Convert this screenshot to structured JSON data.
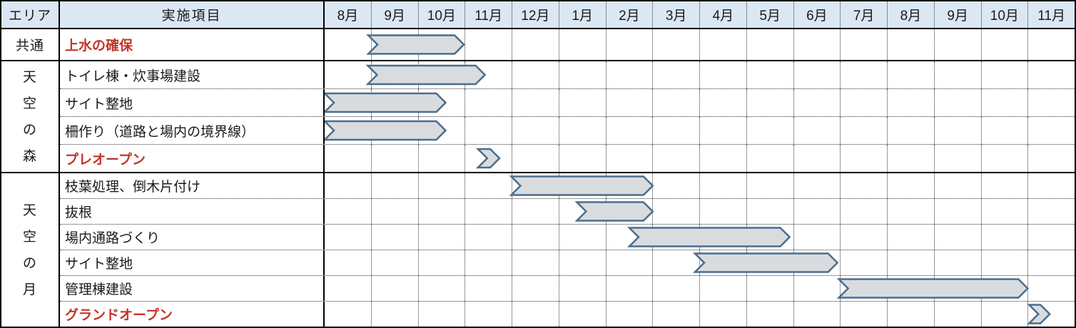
{
  "header": {
    "area_label": "エリア",
    "item_label": "実施項目"
  },
  "chart_data": {
    "type": "gantt",
    "unit": "month-column index; 0 = left edge of first 8月 column, 16 columns total",
    "months": [
      "8月",
      "9月",
      "10月",
      "11月",
      "12月",
      "1月",
      "2月",
      "3月",
      "4月",
      "5月",
      "6月",
      "7月",
      "8月",
      "9月",
      "10月",
      "11月"
    ],
    "sections": [
      {
        "area": "共通",
        "vertical": false,
        "tasks": [
          {
            "label": "上水の確保",
            "emphasis": true,
            "start": 0.93,
            "end": 2.97
          }
        ]
      },
      {
        "area": "天空の森",
        "vertical": true,
        "tasks": [
          {
            "label": "トイレ棟・炊事場建設",
            "emphasis": false,
            "start": 0.92,
            "end": 3.42
          },
          {
            "label": "サイト整地",
            "emphasis": false,
            "start": 0.0,
            "end": 2.58
          },
          {
            "label": "柵作り（道路と場内の境界線）",
            "emphasis": false,
            "start": 0.0,
            "end": 2.58
          },
          {
            "label": "プレオープン",
            "emphasis": true,
            "milestone": true,
            "start": 3.27,
            "end": 3.73
          }
        ]
      },
      {
        "area": "天空の月",
        "vertical": true,
        "tasks": [
          {
            "label": "枝葉処理、倒木片付け",
            "emphasis": false,
            "start": 3.98,
            "end": 7.0
          },
          {
            "label": "抜根",
            "emphasis": false,
            "start": 5.38,
            "end": 7.0
          },
          {
            "label": "場内通路づくり",
            "emphasis": false,
            "start": 6.5,
            "end": 9.92
          },
          {
            "label": "サイト整地",
            "emphasis": false,
            "start": 7.9,
            "end": 10.94
          },
          {
            "label": "管理棟建設",
            "emphasis": false,
            "start": 10.97,
            "end": 15.0
          },
          {
            "label": "グランドオープン",
            "emphasis": true,
            "milestone": true,
            "start": 15.03,
            "end": 15.47
          }
        ]
      }
    ],
    "colors": {
      "header_bg": "#dbe7f3",
      "bar_fill": "#d9dcdf",
      "bar_stroke": "#4a6d8c",
      "emphasis_text": "#c2352a",
      "grid_dotted": "#333333",
      "border": "#000000",
      "text": "#1a1a1a"
    }
  }
}
